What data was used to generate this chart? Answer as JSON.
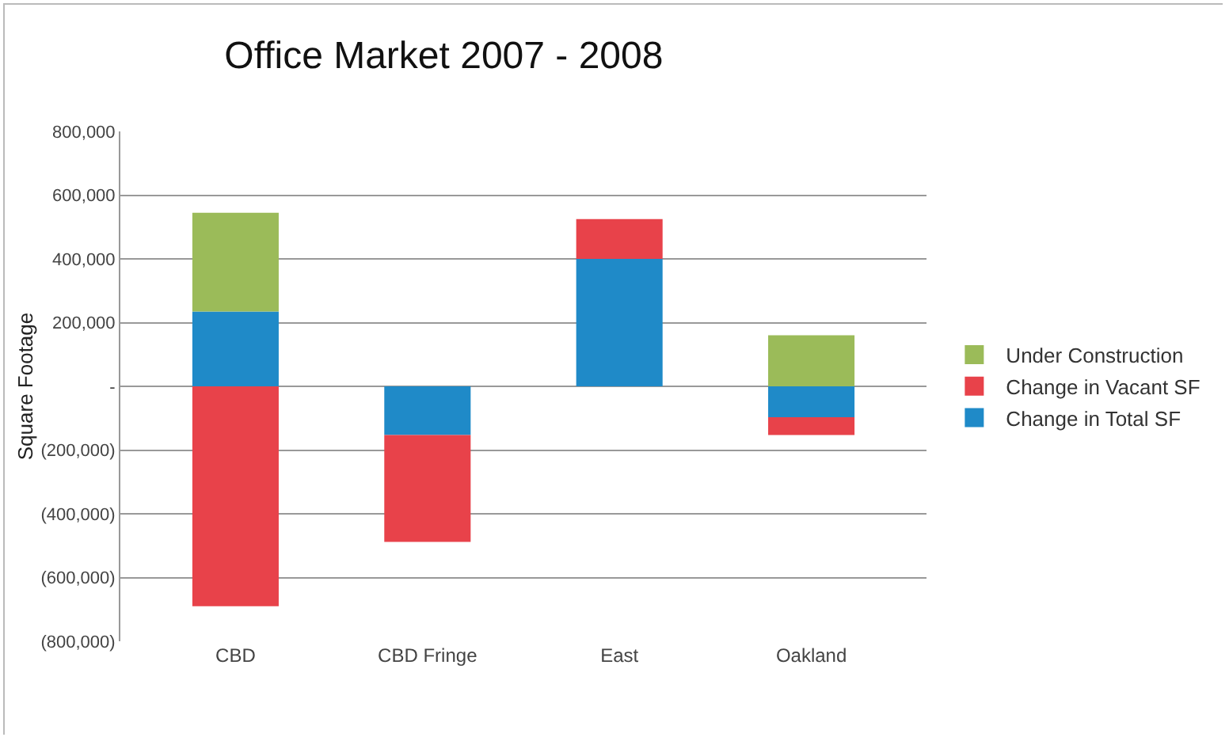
{
  "chart_data": {
    "type": "bar",
    "title": "Office Market 2007 - 2008",
    "ylabel": "Square Footage",
    "categories": [
      "CBD",
      "CBD Fringe",
      "East",
      "Oakland"
    ],
    "stacked": true,
    "series": [
      {
        "name": "Change in Total SF",
        "color": "#1f8ac8",
        "values": [
          235000,
          -153000,
          400000,
          -97000
        ]
      },
      {
        "name": "Change in Vacant SF",
        "color": "#e8424a",
        "values": [
          -690000,
          -335000,
          125000,
          -56000
        ]
      },
      {
        "name": "Under Construction",
        "color": "#9bbb59",
        "values": [
          310000,
          null,
          null,
          160000
        ]
      }
    ],
    "ylim": [
      -800000,
      800000
    ],
    "yticks": [
      {
        "value": 800000,
        "label": "800,000"
      },
      {
        "value": 600000,
        "label": "600,000"
      },
      {
        "value": 400000,
        "label": "400,000"
      },
      {
        "value": 200000,
        "label": "200,000"
      },
      {
        "value": 0,
        "label": "-"
      },
      {
        "value": -200000,
        "label": "(200,000)"
      },
      {
        "value": -400000,
        "label": "(400,000)"
      },
      {
        "value": -600000,
        "label": "(600,000)"
      },
      {
        "value": -800000,
        "label": "(800,000)"
      }
    ],
    "grid": "y",
    "legend": "right"
  }
}
